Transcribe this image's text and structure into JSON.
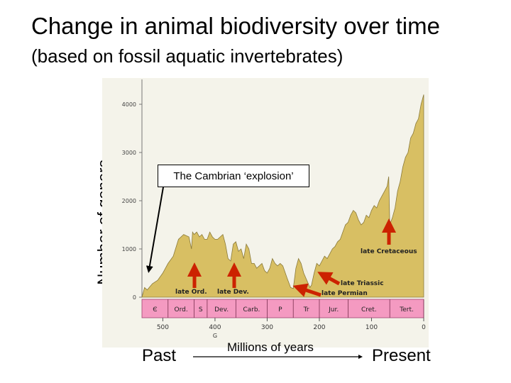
{
  "title": "Change in animal biodiversity over time",
  "subtitle": "(based on fossil aquatic invertebrates)",
  "colors": {
    "area_fill": "#d8bf63",
    "area_stroke": "#8a7a3a",
    "period_band": "#f49ac1",
    "arrow": "#cc2200",
    "panel_bg": "#f4f3ea"
  },
  "labels": {
    "past": "Past",
    "present": "Present",
    "millions": "Millions of years",
    "cambrian_callout": "The Cambrian ‘explosion’"
  },
  "chart_data": {
    "type": "area",
    "ylabel": "Number of genera",
    "x_direction": "reversed",
    "xlim": [
      540,
      0
    ],
    "ylim": [
      0,
      4200
    ],
    "y_ticks": [
      "0",
      "1000",
      "2000",
      "3000",
      "4000"
    ],
    "x_ticks": [
      "500",
      "400",
      "300",
      "200",
      "100",
      "0"
    ],
    "x_tick_values": [
      500,
      400,
      300,
      200,
      100,
      0
    ],
    "x_extra_label": "G",
    "periods": [
      {
        "label": "Є",
        "start": 540,
        "end": 490
      },
      {
        "label": "Ord.",
        "start": 490,
        "end": 440
      },
      {
        "label": "S",
        "start": 440,
        "end": 415
      },
      {
        "label": "Dev.",
        "start": 415,
        "end": 360
      },
      {
        "label": "Carb.",
        "start": 360,
        "end": 300
      },
      {
        "label": "P",
        "start": 300,
        "end": 250
      },
      {
        "label": "Tr",
        "start": 250,
        "end": 200
      },
      {
        "label": "Jur.",
        "start": 200,
        "end": 145
      },
      {
        "label": "Cret.",
        "start": 145,
        "end": 65
      },
      {
        "label": "Tert.",
        "start": 65,
        "end": 0
      }
    ],
    "series": [
      {
        "points": [
          [
            540,
            0
          ],
          [
            535,
            200
          ],
          [
            530,
            150
          ],
          [
            520,
            280
          ],
          [
            510,
            350
          ],
          [
            500,
            500
          ],
          [
            490,
            700
          ],
          [
            480,
            850
          ],
          [
            470,
            1200
          ],
          [
            460,
            1300
          ],
          [
            450,
            1250
          ],
          [
            445,
            1000
          ],
          [
            443,
            1350
          ],
          [
            440,
            1300
          ],
          [
            435,
            1350
          ],
          [
            430,
            1250
          ],
          [
            425,
            1300
          ],
          [
            420,
            1200
          ],
          [
            415,
            1200
          ],
          [
            410,
            1350
          ],
          [
            405,
            1250
          ],
          [
            400,
            1200
          ],
          [
            395,
            1200
          ],
          [
            390,
            1250
          ],
          [
            385,
            1300
          ],
          [
            380,
            1100
          ],
          [
            375,
            800
          ],
          [
            370,
            750
          ],
          [
            365,
            1100
          ],
          [
            360,
            1150
          ],
          [
            355,
            950
          ],
          [
            350,
            1000
          ],
          [
            345,
            800
          ],
          [
            340,
            1100
          ],
          [
            335,
            1000
          ],
          [
            330,
            700
          ],
          [
            325,
            700
          ],
          [
            320,
            600
          ],
          [
            315,
            650
          ],
          [
            310,
            700
          ],
          [
            305,
            550
          ],
          [
            300,
            500
          ],
          [
            295,
            600
          ],
          [
            290,
            800
          ],
          [
            285,
            700
          ],
          [
            280,
            650
          ],
          [
            275,
            700
          ],
          [
            270,
            650
          ],
          [
            262,
            400
          ],
          [
            255,
            200
          ],
          [
            250,
            180
          ],
          [
            245,
            600
          ],
          [
            240,
            800
          ],
          [
            235,
            700
          ],
          [
            230,
            500
          ],
          [
            222,
            300
          ],
          [
            218,
            200
          ],
          [
            215,
            250
          ],
          [
            210,
            500
          ],
          [
            205,
            700
          ],
          [
            200,
            650
          ],
          [
            195,
            750
          ],
          [
            190,
            850
          ],
          [
            185,
            800
          ],
          [
            180,
            900
          ],
          [
            175,
            1000
          ],
          [
            170,
            1050
          ],
          [
            165,
            1150
          ],
          [
            160,
            1200
          ],
          [
            155,
            1350
          ],
          [
            150,
            1500
          ],
          [
            145,
            1550
          ],
          [
            140,
            1700
          ],
          [
            135,
            1800
          ],
          [
            130,
            1750
          ],
          [
            125,
            1600
          ],
          [
            120,
            1500
          ],
          [
            115,
            1550
          ],
          [
            110,
            1700
          ],
          [
            105,
            1650
          ],
          [
            100,
            1800
          ],
          [
            95,
            1900
          ],
          [
            90,
            1850
          ],
          [
            85,
            2000
          ],
          [
            80,
            2100
          ],
          [
            75,
            2200
          ],
          [
            70,
            2300
          ],
          [
            67,
            2500
          ],
          [
            65,
            1500
          ],
          [
            60,
            1650
          ],
          [
            55,
            1850
          ],
          [
            50,
            2200
          ],
          [
            45,
            2400
          ],
          [
            40,
            2700
          ],
          [
            35,
            2900
          ],
          [
            30,
            3000
          ],
          [
            25,
            3300
          ],
          [
            20,
            3400
          ],
          [
            15,
            3600
          ],
          [
            10,
            3700
          ],
          [
            5,
            4000
          ],
          [
            0,
            4200
          ]
        ]
      }
    ],
    "annotations": [
      {
        "text": "late Ord.",
        "x": 445,
        "y": 1000
      },
      {
        "text": "late Dev.",
        "x": 370,
        "y": 750
      },
      {
        "text": "late Permian",
        "x": 250,
        "y": 180
      },
      {
        "text": "late Triassic",
        "x": 200,
        "y": 650
      },
      {
        "text": "late Cretaceous",
        "x": 65,
        "y": 1500
      }
    ]
  }
}
